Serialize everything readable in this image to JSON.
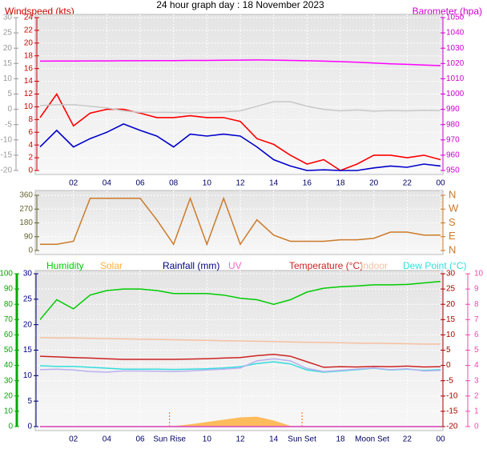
{
  "chart_data": [
    {
      "type": "line",
      "title": "24 hour graph day : 18 November 2023",
      "y_label": "Windspeed (kts)",
      "y2_label": "Barometer (hpa)",
      "x": [
        0,
        1,
        2,
        3,
        4,
        5,
        6,
        7,
        8,
        9,
        10,
        11,
        12,
        13,
        14,
        15,
        16,
        17,
        18,
        19,
        20,
        21,
        22,
        23,
        24
      ],
      "xlim": [
        0,
        24
      ],
      "xticks": [
        {
          "value": 2,
          "label": "02"
        },
        {
          "value": 4,
          "label": "04"
        },
        {
          "value": 6,
          "label": "06"
        },
        {
          "value": 8,
          "label": "08"
        },
        10,
        12,
        14,
        16,
        18,
        20,
        22,
        {
          "value": 24,
          "label": "00"
        }
      ],
      "ylim": [
        0,
        24
      ],
      "yticks": [
        0,
        2,
        4,
        6,
        8,
        10,
        12,
        14,
        16,
        18,
        20,
        22,
        24
      ],
      "y2lim": [
        950,
        1050
      ],
      "y2ticks": [
        950,
        960,
        970,
        980,
        990,
        1000,
        1010,
        1020,
        1030,
        1040,
        1050
      ],
      "y3lim": [
        -20,
        30
      ],
      "y3ticks": [
        -20,
        -15,
        -10,
        -5,
        0,
        5,
        10,
        15,
        20,
        25,
        30
      ],
      "grid": true,
      "series": [
        {
          "color": "#ff0000",
          "axis": "y",
          "values": [
            8.3,
            12,
            7,
            9,
            9.6,
            9.6,
            9,
            8.3,
            8.3,
            8.6,
            8.3,
            8.3,
            7.7,
            5,
            4.1,
            2.4,
            1,
            1.7,
            0,
            1,
            2.4,
            2.4,
            2,
            2.4,
            1.7
          ]
        },
        {
          "color": "#0000cc",
          "axis": "y",
          "values": [
            3.7,
            6.3,
            3.7,
            5,
            6,
            7.3,
            6.3,
            5.4,
            3.7,
            5.7,
            5.4,
            5.7,
            5.4,
            3.7,
            1.7,
            0.7,
            0,
            0.1,
            0,
            0,
            0.4,
            0.7,
            0.5,
            1,
            0.7
          ]
        },
        {
          "color": "#ff00ff",
          "axis": "y2",
          "values": [
            1021.5,
            1021.6,
            1021.6,
            1021.7,
            1021.7,
            1021.8,
            1021.8,
            1021.9,
            1021.9,
            1022,
            1022,
            1022.1,
            1022.2,
            1022.3,
            1022.2,
            1022,
            1021.8,
            1021.5,
            1021.2,
            1020.8,
            1020.3,
            1019.8,
            1019.4,
            1019,
            1018.6
          ]
        },
        {
          "color": "#c8c8c8",
          "axis": "y3",
          "values": [
            1.2,
            1.5,
            1.5,
            1,
            0.5,
            -0.5,
            -1,
            -1,
            -1,
            -1.2,
            -1,
            -0.8,
            -0.5,
            1,
            2.5,
            2.5,
            1,
            0,
            -0.5,
            -0.2,
            -0.6,
            -0.4,
            -0.5,
            -0.3,
            -0.4
          ]
        }
      ]
    },
    {
      "type": "line",
      "x": [
        0,
        1,
        2,
        3,
        4,
        5,
        6,
        7,
        8,
        9,
        10,
        11,
        12,
        13,
        14,
        15,
        16,
        17,
        18,
        19,
        20,
        21,
        22,
        23,
        24
      ],
      "xlim": [
        0,
        24
      ],
      "ylim": [
        0,
        360
      ],
      "yticks": [
        0,
        90,
        180,
        270,
        360
      ],
      "y2lim": [
        0,
        360
      ],
      "y2ticks": [
        {
          "value": 0,
          "label": "N"
        },
        {
          "value": 90,
          "label": "E"
        },
        {
          "value": 180,
          "label": "S"
        },
        {
          "value": 270,
          "label": "W"
        },
        {
          "value": 360,
          "label": "N"
        }
      ],
      "grid": true,
      "series": [
        {
          "color": "#cc7a29",
          "axis": "y",
          "values": [
            40,
            40,
            60,
            340,
            340,
            340,
            340,
            200,
            40,
            340,
            40,
            340,
            40,
            200,
            100,
            60,
            60,
            60,
            70,
            70,
            80,
            120,
            120,
            100,
            100
          ]
        }
      ]
    },
    {
      "type": "line",
      "x": [
        0,
        1,
        2,
        3,
        4,
        5,
        6,
        7,
        8,
        9,
        10,
        11,
        12,
        13,
        14,
        15,
        16,
        17,
        18,
        19,
        20,
        21,
        22,
        23,
        24
      ],
      "xlim": [
        0,
        24
      ],
      "xticks": [
        {
          "value": 2,
          "label": "02"
        },
        {
          "value": 4,
          "label": "04"
        },
        {
          "value": 6,
          "label": "06"
        },
        10,
        12,
        14,
        18,
        22,
        {
          "value": 24,
          "label": "00"
        }
      ],
      "annotations": [
        {
          "x": 7.76,
          "text": "Sun Rise"
        },
        {
          "x": 15.7,
          "text": "Sun Set"
        },
        {
          "x": 19.9,
          "text": "Moon Set"
        }
      ],
      "ylim": [
        0,
        100
      ],
      "yticks": [
        0,
        10,
        20,
        30,
        40,
        50,
        60,
        70,
        80,
        90,
        100
      ],
      "y2lim": [
        -20,
        30
      ],
      "y2ticks": [
        -20,
        -15,
        -10,
        -5,
        0,
        5,
        10,
        15,
        20,
        25,
        30
      ],
      "y3lim": [
        0,
        30
      ],
      "y3ticks": [
        0,
        5,
        10,
        15,
        20,
        25,
        30
      ],
      "y4lim": [
        0,
        10
      ],
      "y4ticks": [
        0,
        1,
        2,
        3,
        4,
        5,
        6,
        7,
        8,
        9,
        10
      ],
      "grid": true,
      "series": [
        {
          "name": "Humidity",
          "color": "#00cc00",
          "axis": "y",
          "values": [
            70,
            83,
            77,
            86,
            89,
            90,
            90,
            89,
            87,
            87,
            87,
            86,
            84,
            83,
            80,
            83,
            88,
            90.5,
            91.5,
            92,
            92.7,
            92.7,
            93,
            94,
            95
          ]
        },
        {
          "name": "Solar",
          "color": "#ffb040",
          "axis": "y",
          "area": true,
          "values": [
            0,
            0,
            0,
            0,
            0,
            0,
            0,
            0,
            0.3,
            1.5,
            3,
            4.5,
            6,
            6.5,
            4,
            0.5,
            0,
            0,
            0,
            0,
            0,
            0,
            0,
            0,
            0
          ]
        },
        {
          "name": "Rainfall (mm)",
          "color": "#000080",
          "axis": "y3",
          "values": [
            0,
            0,
            0,
            0,
            0,
            0,
            0,
            0,
            0,
            0,
            0,
            0,
            0,
            0,
            0,
            0,
            0,
            0,
            0,
            0,
            0,
            0,
            0,
            0,
            0
          ]
        },
        {
          "name": "UV",
          "color": "#ff66cc",
          "axis": "y4",
          "values": [
            0,
            0,
            0,
            0,
            0,
            0,
            0,
            0,
            0,
            0,
            0,
            0,
            0,
            0,
            0,
            0,
            0,
            0,
            0,
            0,
            0,
            0,
            0,
            0,
            0
          ]
        },
        {
          "name": "Temperature (°C)",
          "color": "#cc2222",
          "axis": "y2",
          "values": [
            3,
            2.8,
            2.6,
            2.4,
            2.2,
            2,
            2,
            2,
            2,
            2.1,
            2.2,
            2.4,
            2.6,
            3.2,
            3.6,
            3,
            1.2,
            -0.6,
            -0.4,
            -0.5,
            -0.3,
            -0.4,
            -0.2,
            -0.5,
            -0.4
          ]
        },
        {
          "name": "Indoor",
          "color": "#f5c0a0",
          "axis": "y2",
          "values": [
            9.1,
            9,
            9,
            8.9,
            8.8,
            8.7,
            8.6,
            8.5,
            8.4,
            8.3,
            8.2,
            8.1,
            8,
            7.9,
            7.8,
            7.7,
            7.6,
            7.5,
            7.4,
            7.3,
            7.3,
            7.2,
            7.1,
            7,
            7
          ]
        },
        {
          "name": "Dew Point (°C)",
          "color": "#33dddd",
          "axis": "y2",
          "values": [
            -0.1,
            -0.3,
            -0.3,
            -0.6,
            -0.9,
            -1.2,
            -1.2,
            -1.2,
            -1.3,
            -1.2,
            -1.1,
            -0.8,
            -0.4,
            0.6,
            1.2,
            0.5,
            -1.5,
            -2.2,
            -1.8,
            -1.4,
            -0.9,
            -1.5,
            -1.2,
            -1.6,
            -1.4
          ]
        },
        {
          "color": "#b8b0f0",
          "axis": "y2",
          "values": [
            -1.4,
            -1.2,
            -1.5,
            -2,
            -2.2,
            -1.8,
            -1.8,
            -1.9,
            -2,
            -1.8,
            -1.5,
            -1.2,
            -0.8,
            1.5,
            2.2,
            1.5,
            -1,
            -2,
            -1.6,
            -1.2,
            -0.8,
            -1.4,
            -1.1,
            -1.8,
            -1.6
          ]
        }
      ]
    }
  ]
}
